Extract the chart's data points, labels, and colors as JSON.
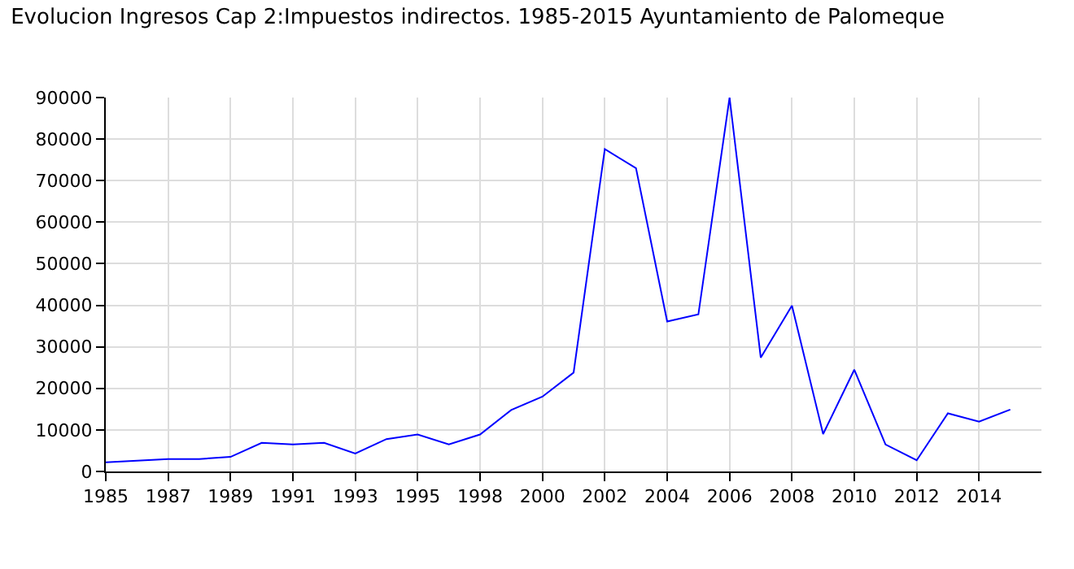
{
  "chart_data": {
    "type": "line",
    "title": "Evolucion Ingresos Cap 2:Impuestos indirectos. 1985-2015 Ayuntamiento de Palomeque",
    "categories": [
      "1985",
      null,
      "1987",
      null,
      "1989",
      null,
      "1991",
      null,
      "1993",
      null,
      "1995",
      null,
      "1998",
      null,
      "2000",
      null,
      "2002",
      null,
      "2004",
      null,
      "2006",
      null,
      "2008",
      null,
      "2010",
      null,
      "2012",
      null,
      "2014",
      null
    ],
    "series": [
      {
        "color": "#0000ff",
        "values": [
          2200,
          2600,
          3000,
          3000,
          3500,
          6900,
          6500,
          6900,
          4300,
          7800,
          8900,
          6500,
          8900,
          14800,
          18000,
          23800,
          77600,
          73000,
          36100,
          37800,
          90000,
          27400,
          39900,
          9000,
          24500,
          6500,
          2700,
          14000,
          12000,
          14900
        ]
      }
    ],
    "ylim": [
      0,
      90000
    ],
    "yticks": [
      0,
      10000,
      20000,
      30000,
      40000,
      50000,
      60000,
      70000,
      80000,
      90000
    ],
    "grid": true,
    "marker": "none",
    "line_style": "solid"
  }
}
